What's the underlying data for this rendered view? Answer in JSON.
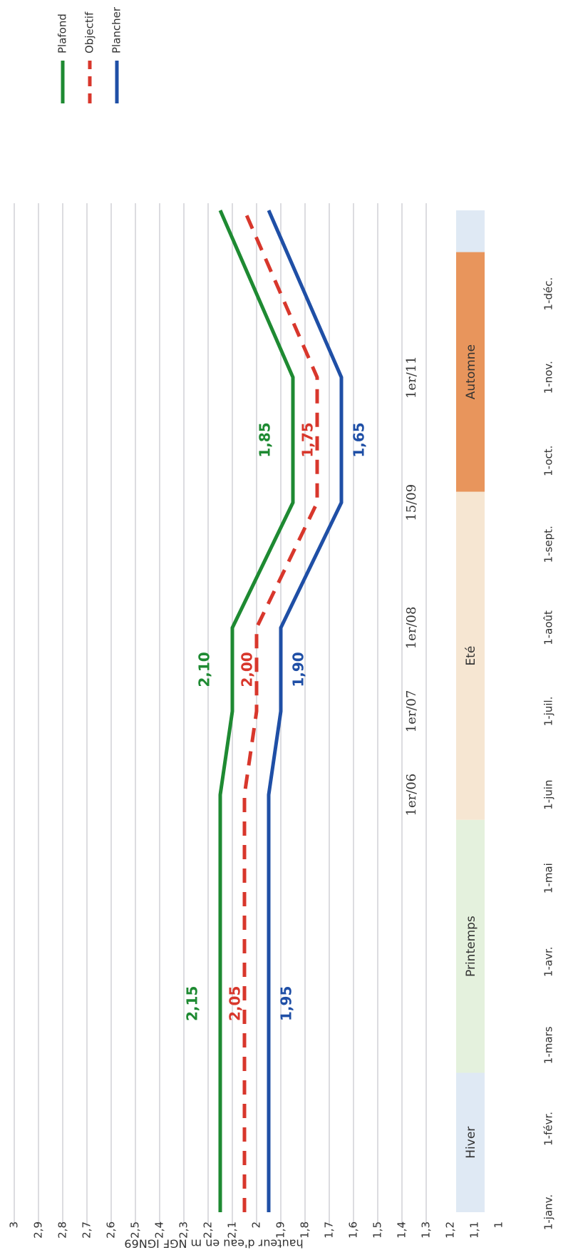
{
  "chart_data": {
    "type": "line",
    "y_label": "hauteur d'eau en m NGF IGN69",
    "xlim": [
      0,
      12
    ],
    "xticks": [
      {
        "value": 0,
        "label": "1-janv."
      },
      {
        "value": 1,
        "label": "1-févr."
      },
      {
        "value": 2,
        "label": "1-mars"
      },
      {
        "value": 3,
        "label": "1-avr."
      },
      {
        "value": 4,
        "label": "1-mai"
      },
      {
        "value": 5,
        "label": "1-juin"
      },
      {
        "value": 6,
        "label": "1-juil."
      },
      {
        "value": 7,
        "label": "1-août"
      },
      {
        "value": 8,
        "label": "1-sept."
      },
      {
        "value": 9,
        "label": "1-oct."
      },
      {
        "value": 10,
        "label": "1-nov."
      },
      {
        "value": 11,
        "label": "1-déc."
      }
    ],
    "ylim": [
      1,
      3
    ],
    "yticks": [
      3,
      {
        "value": 2.9,
        "label": "2,9"
      },
      {
        "value": 2.8,
        "label": "2,8"
      },
      {
        "value": 2.7,
        "label": "2,7"
      },
      {
        "value": 2.6,
        "label": "2,6"
      },
      {
        "value": 2.5,
        "label": "2,5"
      },
      {
        "value": 2.4,
        "label": "2,4"
      },
      {
        "value": 2.3,
        "label": "2,3"
      },
      {
        "value": 2.2,
        "label": "2,2"
      },
      {
        "value": 2.1,
        "label": "2,1"
      },
      2,
      {
        "value": 1.9,
        "label": "1,9"
      },
      {
        "value": 1.8,
        "label": "1,8"
      },
      {
        "value": 1.7,
        "label": "1,7"
      },
      {
        "value": 1.6,
        "label": "1,6"
      },
      {
        "value": 1.5,
        "label": "1,5"
      },
      {
        "value": 1.4,
        "label": "1,4"
      },
      {
        "value": 1.3,
        "label": "1,3"
      },
      {
        "value": 1.2,
        "label": "1,2"
      },
      {
        "value": 1.1,
        "label": "1,1"
      },
      1
    ],
    "grid": true,
    "legend": "top-right",
    "x": [
      0,
      5,
      6,
      7,
      8.5,
      10,
      12
    ],
    "series": [
      {
        "name": "Plafond",
        "color": "#1e8a32",
        "dashed": false,
        "values": [
          2.15,
          2.15,
          2.1,
          2.1,
          1.85,
          1.85,
          2.15
        ],
        "value_labels": [
          "2,15",
          null,
          "2,10",
          null,
          "1,85",
          null,
          null
        ]
      },
      {
        "name": "Objectif",
        "color": "#d8372c",
        "dashed": true,
        "values": [
          2.05,
          2.05,
          2.0,
          2.0,
          1.75,
          1.75,
          2.05
        ],
        "value_labels": [
          "2,05",
          null,
          "2,00",
          null,
          "1,75",
          null,
          null
        ]
      },
      {
        "name": "Plancher",
        "color": "#1f4fa6",
        "dashed": false,
        "values": [
          1.95,
          1.95,
          1.9,
          1.9,
          1.65,
          1.65,
          1.95
        ],
        "value_labels": [
          "1,95",
          null,
          "1,90",
          null,
          "1,65",
          null,
          null
        ]
      }
    ],
    "date_marks": [
      {
        "x": 5,
        "label": "1er/06"
      },
      {
        "x": 6,
        "label": "1er/07"
      },
      {
        "x": 7,
        "label": "1er/08"
      },
      {
        "x": 8.5,
        "label": "15/09"
      },
      {
        "x": 10,
        "label": "1er/11"
      }
    ],
    "seasons": [
      {
        "label": "Hiver",
        "x": [
          0,
          1.67
        ],
        "color": "#dfe9f4"
      },
      {
        "label": "Printemps",
        "x": [
          1.67,
          4.7
        ],
        "color": "#e4f1dd"
      },
      {
        "label": "Eté",
        "x": [
          4.7,
          8.63
        ],
        "color": "#f6e6d2"
      },
      {
        "label": "Automne",
        "x": [
          8.63,
          11.5
        ],
        "color": "#e8955c"
      },
      {
        "label": null,
        "x": [
          11.5,
          12
        ],
        "color": "#dfe9f4"
      }
    ]
  }
}
